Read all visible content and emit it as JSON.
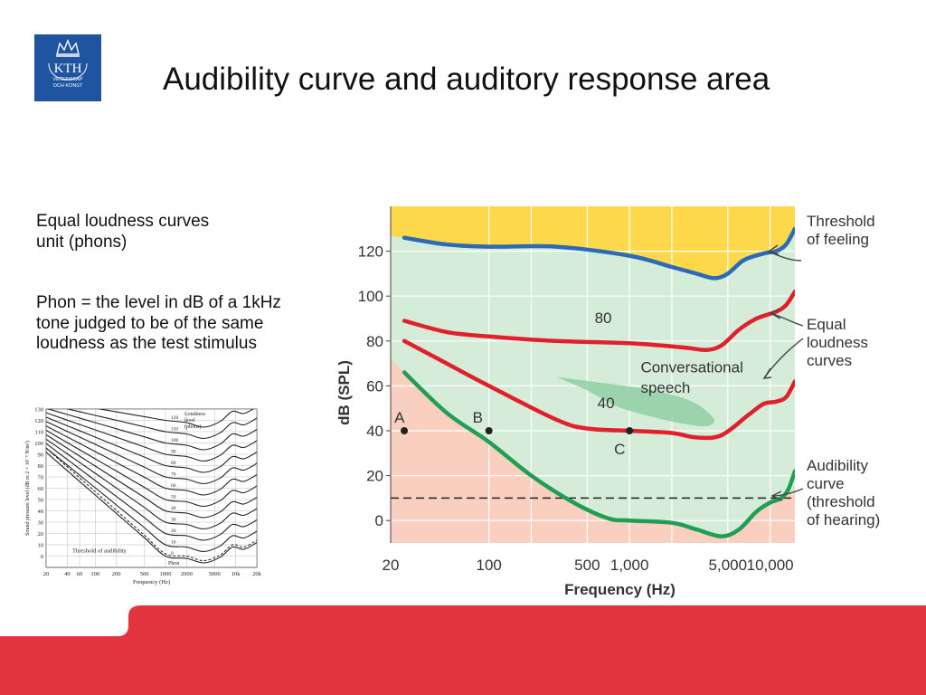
{
  "slide": {
    "title": "Audibility curve and auditory response area",
    "logo": {
      "text": "KTH",
      "subtext1": "VETENSKAP",
      "subtext2": "OCH KONST"
    },
    "notes": {
      "line1a": "Equal loudness curves",
      "line1b": "unit (phons)",
      "line2a": "Phon = the level in dB of a 1kHz",
      "line2b": "tone judged to be of the same",
      "line2c": "loudness as the test stimulus"
    },
    "colors": {
      "brand": "#1e54a0",
      "footer": "#e2353f"
    }
  },
  "chart_data": [
    {
      "type": "line",
      "xlabel": "Frequency (Hz)",
      "ylabel": "dB (SPL)",
      "x_scale": "log",
      "xlim": [
        20,
        15000
      ],
      "ylim": [
        -10,
        140
      ],
      "x_ticks": [
        {
          "v": 20,
          "label": "20"
        },
        {
          "v": 100,
          "label": "100"
        },
        {
          "v": 500,
          "label": "500"
        },
        {
          "v": 1000,
          "label": "1,000"
        },
        {
          "v": 5000,
          "label": "5,000"
        },
        {
          "v": 10000,
          "label": "10,000"
        }
      ],
      "y_ticks": [
        0,
        20,
        40,
        60,
        80,
        100,
        120
      ],
      "extra_x_gridlines": [
        200,
        2000
      ],
      "regions": {
        "feeling_color": "#fdd84a",
        "response_area_color": "#d4ecd8",
        "inaudible_color": "#f9cfc0"
      },
      "series": [
        {
          "name": "Threshold of feeling",
          "color": "#2a6ab6",
          "points": [
            [
              25,
              126
            ],
            [
              50,
              123
            ],
            [
              100,
              122
            ],
            [
              300,
              122
            ],
            [
              1000,
              118
            ],
            [
              2000,
              113
            ],
            [
              3000,
              110
            ],
            [
              4000,
              108
            ],
            [
              5000,
              110
            ],
            [
              6500,
              116
            ],
            [
              9000,
              119
            ],
            [
              11000,
              120
            ],
            [
              13000,
              123
            ],
            [
              15000,
              130
            ]
          ]
        },
        {
          "name": "80",
          "color": "#e0212b",
          "points": [
            [
              25,
              89
            ],
            [
              50,
              84
            ],
            [
              100,
              82
            ],
            [
              300,
              80
            ],
            [
              1000,
              79
            ],
            [
              2500,
              77
            ],
            [
              3500,
              76
            ],
            [
              4500,
              78
            ],
            [
              6000,
              85
            ],
            [
              8000,
              90
            ],
            [
              11000,
              93
            ],
            [
              13000,
              96
            ],
            [
              15000,
              102
            ]
          ]
        },
        {
          "name": "40",
          "color": "#e0212b",
          "points": [
            [
              25,
              80
            ],
            [
              50,
              70
            ],
            [
              100,
              60
            ],
            [
              300,
              45
            ],
            [
              500,
              41
            ],
            [
              1000,
              40
            ],
            [
              2000,
              39
            ],
            [
              3000,
              37
            ],
            [
              4500,
              38
            ],
            [
              7000,
              47
            ],
            [
              9000,
              52
            ],
            [
              11000,
              53
            ],
            [
              13000,
              55
            ],
            [
              15000,
              62
            ]
          ]
        },
        {
          "name": "Audibility curve",
          "color": "#1f9e54",
          "points": [
            [
              25,
              66
            ],
            [
              50,
              48
            ],
            [
              100,
              35
            ],
            [
              200,
              20
            ],
            [
              400,
              8
            ],
            [
              700,
              1
            ],
            [
              1000,
              0
            ],
            [
              2000,
              -1
            ],
            [
              3000,
              -4
            ],
            [
              4500,
              -7
            ],
            [
              6000,
              -4
            ],
            [
              8000,
              4
            ],
            [
              10000,
              8
            ],
            [
              12000,
              10
            ],
            [
              13500,
              14
            ],
            [
              15000,
              22
            ]
          ]
        }
      ],
      "dashed_line_y": 10,
      "speech_region": [
        [
          300,
          64
        ],
        [
          500,
          58
        ],
        [
          800,
          51
        ],
        [
          1500,
          46
        ],
        [
          2500,
          43
        ],
        [
          3500,
          42
        ],
        [
          4000,
          45
        ],
        [
          3000,
          52
        ],
        [
          2000,
          56
        ],
        [
          1200,
          59
        ],
        [
          700,
          61
        ],
        [
          400,
          63
        ]
      ],
      "curve_labels": [
        {
          "text": "80",
          "x": 650,
          "y": 88
        },
        {
          "text": "40",
          "x": 680,
          "y": 50
        }
      ],
      "points": [
        {
          "label": "A",
          "x": 25,
          "y": 40
        },
        {
          "label": "B",
          "x": 100,
          "y": 40
        },
        {
          "label": "C",
          "x": 1000,
          "y": 40
        }
      ],
      "annotations": [
        {
          "text": "Conversational",
          "x": 1200,
          "y": 66
        },
        {
          "text": "speech",
          "x": 1200,
          "y": 57
        }
      ],
      "callouts": {
        "feeling": [
          "Threshold",
          "of feeling"
        ],
        "loudness": [
          "Equal",
          "loudness",
          "curves"
        ],
        "audibility": [
          "Audibility",
          "curve",
          "(threshold",
          "of hearing)"
        ]
      }
    },
    {
      "type": "line",
      "xlabel": "Frequency (Hz)",
      "ylabel": "Sound pressure level (dB re 2 × 10⁻⁵ N/m²)",
      "x_scale": "log",
      "xlim": [
        20,
        20000
      ],
      "ylim": [
        -10,
        130
      ],
      "x_ticks": [
        {
          "v": 20,
          "label": "20"
        },
        {
          "v": 40,
          "label": "40"
        },
        {
          "v": 60,
          "label": "60"
        },
        {
          "v": 100,
          "label": "100"
        },
        {
          "v": 200,
          "label": "200"
        },
        {
          "v": 500,
          "label": "500"
        },
        {
          "v": 1000,
          "label": "1000"
        },
        {
          "v": 2000,
          "label": "2000"
        },
        {
          "v": 5000,
          "label": "5000"
        },
        {
          "v": 10000,
          "label": "10k"
        },
        {
          "v": 20000,
          "label": "20k"
        }
      ],
      "y_ticks": [
        0,
        10,
        20,
        30,
        40,
        50,
        60,
        70,
        80,
        90,
        100,
        110,
        120,
        130
      ],
      "phon_levels": [
        0,
        10,
        20,
        30,
        40,
        50,
        60,
        70,
        80,
        90,
        100,
        110,
        120
      ],
      "legend_title": [
        "Loudness",
        "level",
        "(phons)"
      ],
      "threshold_label": "Threshold of audibility",
      "phon_label": "Phon"
    }
  ]
}
